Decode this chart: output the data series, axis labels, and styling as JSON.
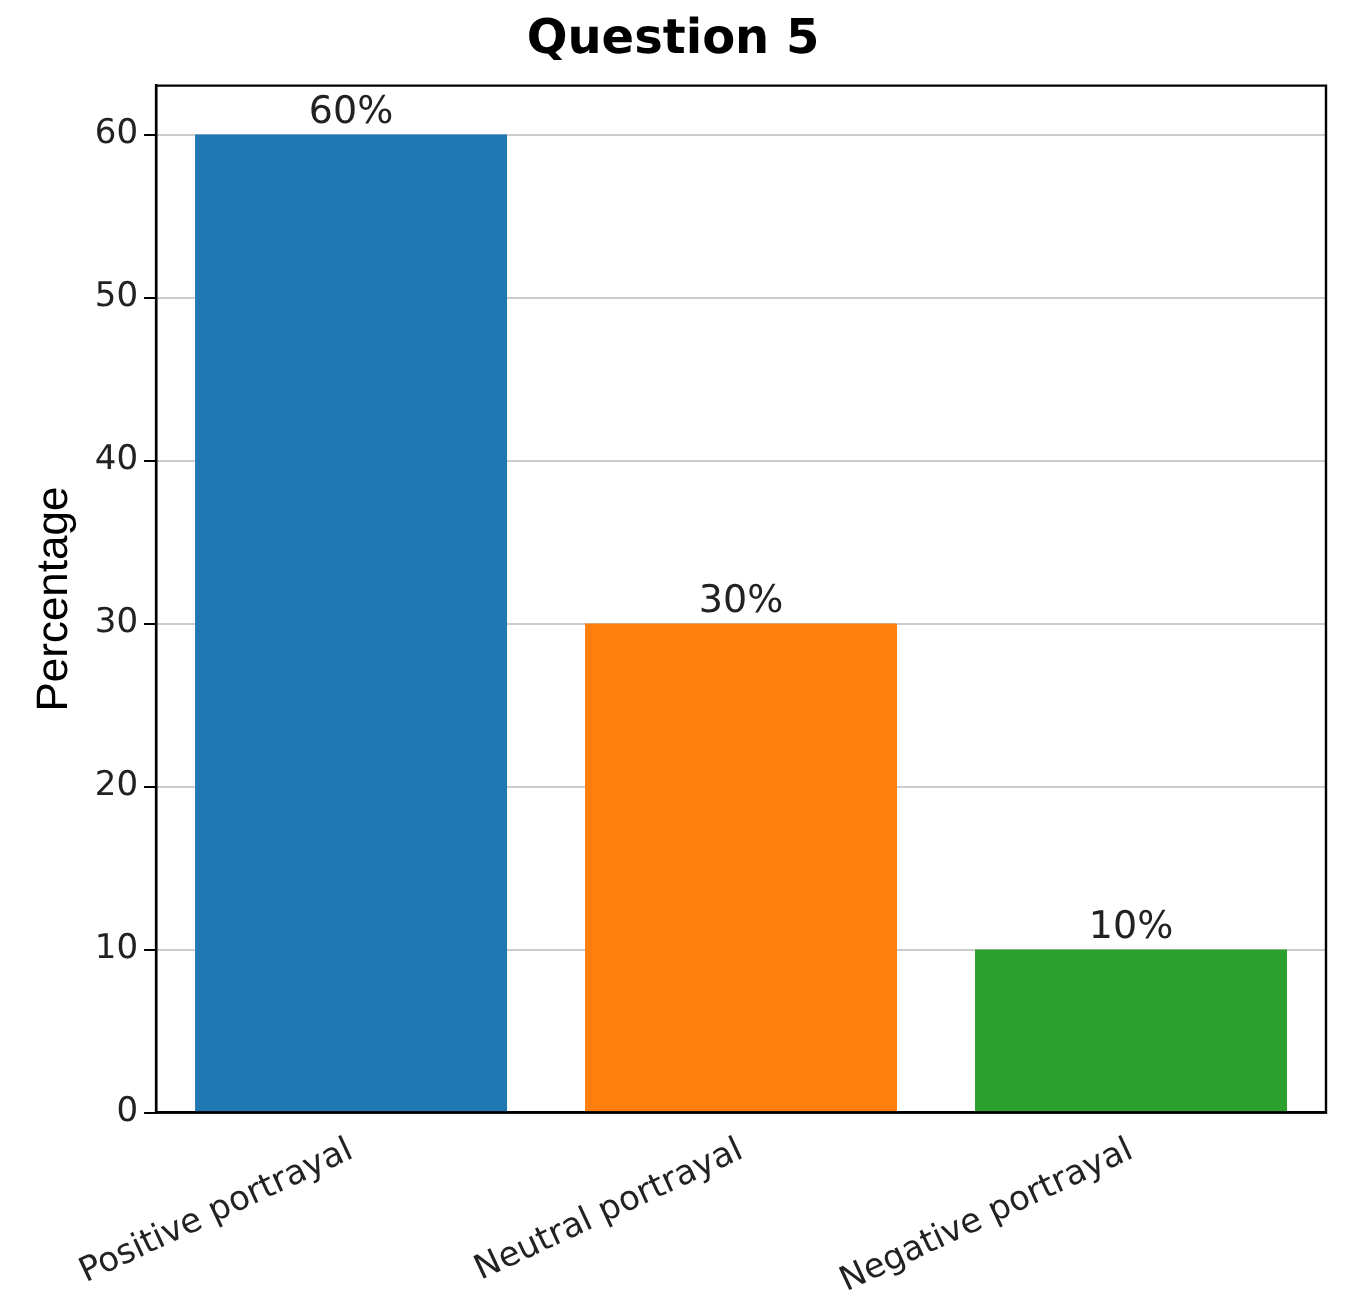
{
  "chart_data": {
    "type": "bar",
    "title": "Question 5",
    "ylabel": "Percentage",
    "categories": [
      "Positive portrayal",
      "Neutral portrayal",
      "Negative portrayal"
    ],
    "values": [
      60,
      30,
      10
    ],
    "colors": [
      "#1f77b4",
      "#ff7f0e",
      "#2ca02c"
    ],
    "value_labels": [
      "60%",
      "30%",
      "10%"
    ],
    "ylim": [
      0,
      63
    ],
    "yticks": [
      0,
      10,
      20,
      30,
      40,
      50,
      60
    ],
    "grid": "y",
    "legend": false
  }
}
